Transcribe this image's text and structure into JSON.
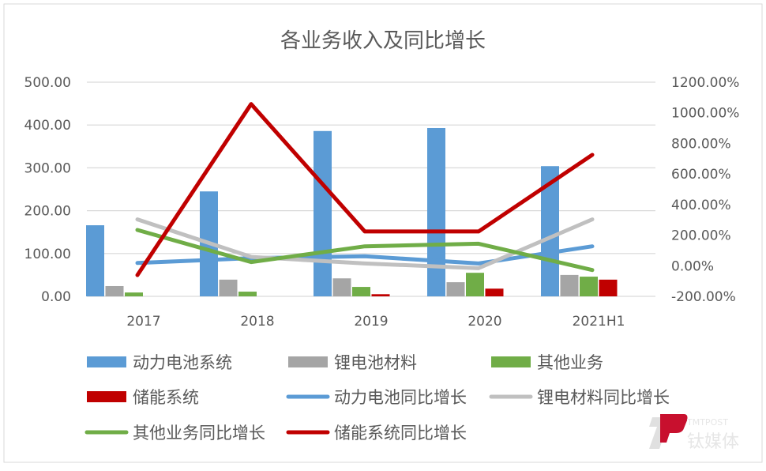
{
  "chart_data": {
    "type": "bar+line",
    "title": "各业务收入及同比增长",
    "categories": [
      "2017",
      "2018",
      "2019",
      "2020",
      "2021H1"
    ],
    "y_left": {
      "range": [
        0,
        500
      ],
      "ticks": [
        "0.00",
        "100.00",
        "200.00",
        "300.00",
        "400.00",
        "500.00"
      ]
    },
    "y_right": {
      "range": [
        -200,
        1200
      ],
      "unit": "%",
      "ticks": [
        "-200.00%",
        "0.00%",
        "200.00%",
        "400.00%",
        "600.00%",
        "800.00%",
        "1000.00%",
        "1200.00%"
      ]
    },
    "grid": true,
    "legend_position": "bottom",
    "bar_series": [
      {
        "name": "动力电池系统",
        "color": "#5b9bd5",
        "values": [
          166,
          245,
          386,
          393,
          304
        ]
      },
      {
        "name": "锂电池材料",
        "color": "#a5a5a5",
        "values": [
          24,
          39,
          42,
          33,
          50
        ]
      },
      {
        "name": "其他业务",
        "color": "#70ad47",
        "values": [
          9,
          11,
          22,
          55,
          46
        ]
      },
      {
        "name": "储能系统",
        "color": "#c00000",
        "values": [
          0,
          0,
          5,
          18,
          39
        ]
      }
    ],
    "line_series": [
      {
        "name": "动力电池同比增长",
        "color": "#5b9bd5",
        "values": [
          18,
          50,
          62,
          15,
          127
        ]
      },
      {
        "name": "锂电材料同比增长",
        "color": "#c0c0c0",
        "values": [
          303,
          58,
          15,
          -16,
          303
        ]
      },
      {
        "name": "其他业务同比增长",
        "color": "#70ad47",
        "values": [
          234,
          24,
          127,
          144,
          -28
        ]
      },
      {
        "name": "储能系统同比增长",
        "color": "#c00000",
        "values": [
          -61,
          1057,
          224,
          224,
          725
        ]
      }
    ]
  },
  "watermark": {
    "text_en": "TMTPOST",
    "text_cn": "钛媒体"
  }
}
